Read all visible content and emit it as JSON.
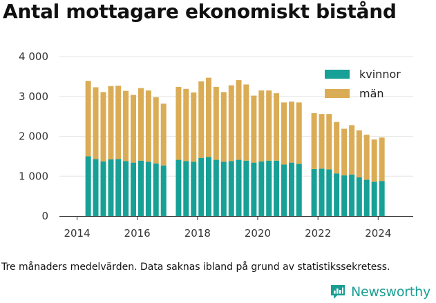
{
  "title": "Antal mottagare ekonomiskt bistånd",
  "note": "Tre månaders medelvärden. Data saknas ibland på grund av statistikssekretess.",
  "brand": {
    "name": "Newsworthy",
    "logo_icon": "bar-chart-speech-bubble-icon",
    "color": "#1a9e93"
  },
  "chart_data": {
    "type": "bar",
    "stacked": true,
    "x_unit": "quarter",
    "x": [
      "2014-Q2",
      "2014-Q3",
      "2014-Q4",
      "2015-Q1",
      "2015-Q2",
      "2015-Q3",
      "2015-Q4",
      "2016-Q1",
      "2016-Q2",
      "2016-Q3",
      "2016-Q4",
      "2017-Q1",
      "2017-Q2",
      "2017-Q3",
      "2017-Q4",
      "2018-Q1",
      "2018-Q2",
      "2018-Q3",
      "2018-Q4",
      "2019-Q1",
      "2019-Q2",
      "2019-Q3",
      "2019-Q4",
      "2020-Q1",
      "2020-Q2",
      "2020-Q3",
      "2020-Q4",
      "2021-Q1",
      "2021-Q2",
      "2021-Q3",
      "2021-Q4",
      "2022-Q1",
      "2022-Q2",
      "2022-Q3",
      "2022-Q4",
      "2023-Q1",
      "2023-Q2",
      "2023-Q3",
      "2023-Q4",
      "2024-Q1"
    ],
    "series": [
      {
        "name": "kvinnor",
        "color": "#17a096",
        "values": [
          1500,
          1430,
          1370,
          1420,
          1430,
          1380,
          1340,
          1390,
          1360,
          1320,
          1270,
          null,
          1410,
          1380,
          1360,
          1460,
          1480,
          1410,
          1360,
          1380,
          1410,
          1390,
          1340,
          1370,
          1390,
          1390,
          1290,
          1340,
          1310,
          null,
          1180,
          1190,
          1170,
          1070,
          1020,
          1040,
          970,
          910,
          860,
          880
        ]
      },
      {
        "name": "män",
        "color": "#dbac56",
        "values": [
          1890,
          1800,
          1740,
          1840,
          1840,
          1760,
          1700,
          1820,
          1790,
          1660,
          1550,
          null,
          1830,
          1810,
          1740,
          1920,
          1990,
          1830,
          1750,
          1900,
          2000,
          1910,
          1680,
          1780,
          1760,
          1690,
          1560,
          1530,
          1540,
          null,
          1400,
          1370,
          1390,
          1290,
          1170,
          1240,
          1180,
          1130,
          1060,
          1090
        ]
      }
    ],
    "xlim": [
      "2013-06-01",
      "2025-03-01"
    ],
    "ylim": [
      0,
      4000
    ],
    "x_ticks": [
      "2014",
      "2016",
      "2018",
      "2020",
      "2022",
      "2024"
    ],
    "y_ticks": [
      "0",
      "1 000",
      "2 000",
      "3 000",
      "4 000"
    ],
    "grid": "horizontal",
    "legend": "top-right"
  }
}
